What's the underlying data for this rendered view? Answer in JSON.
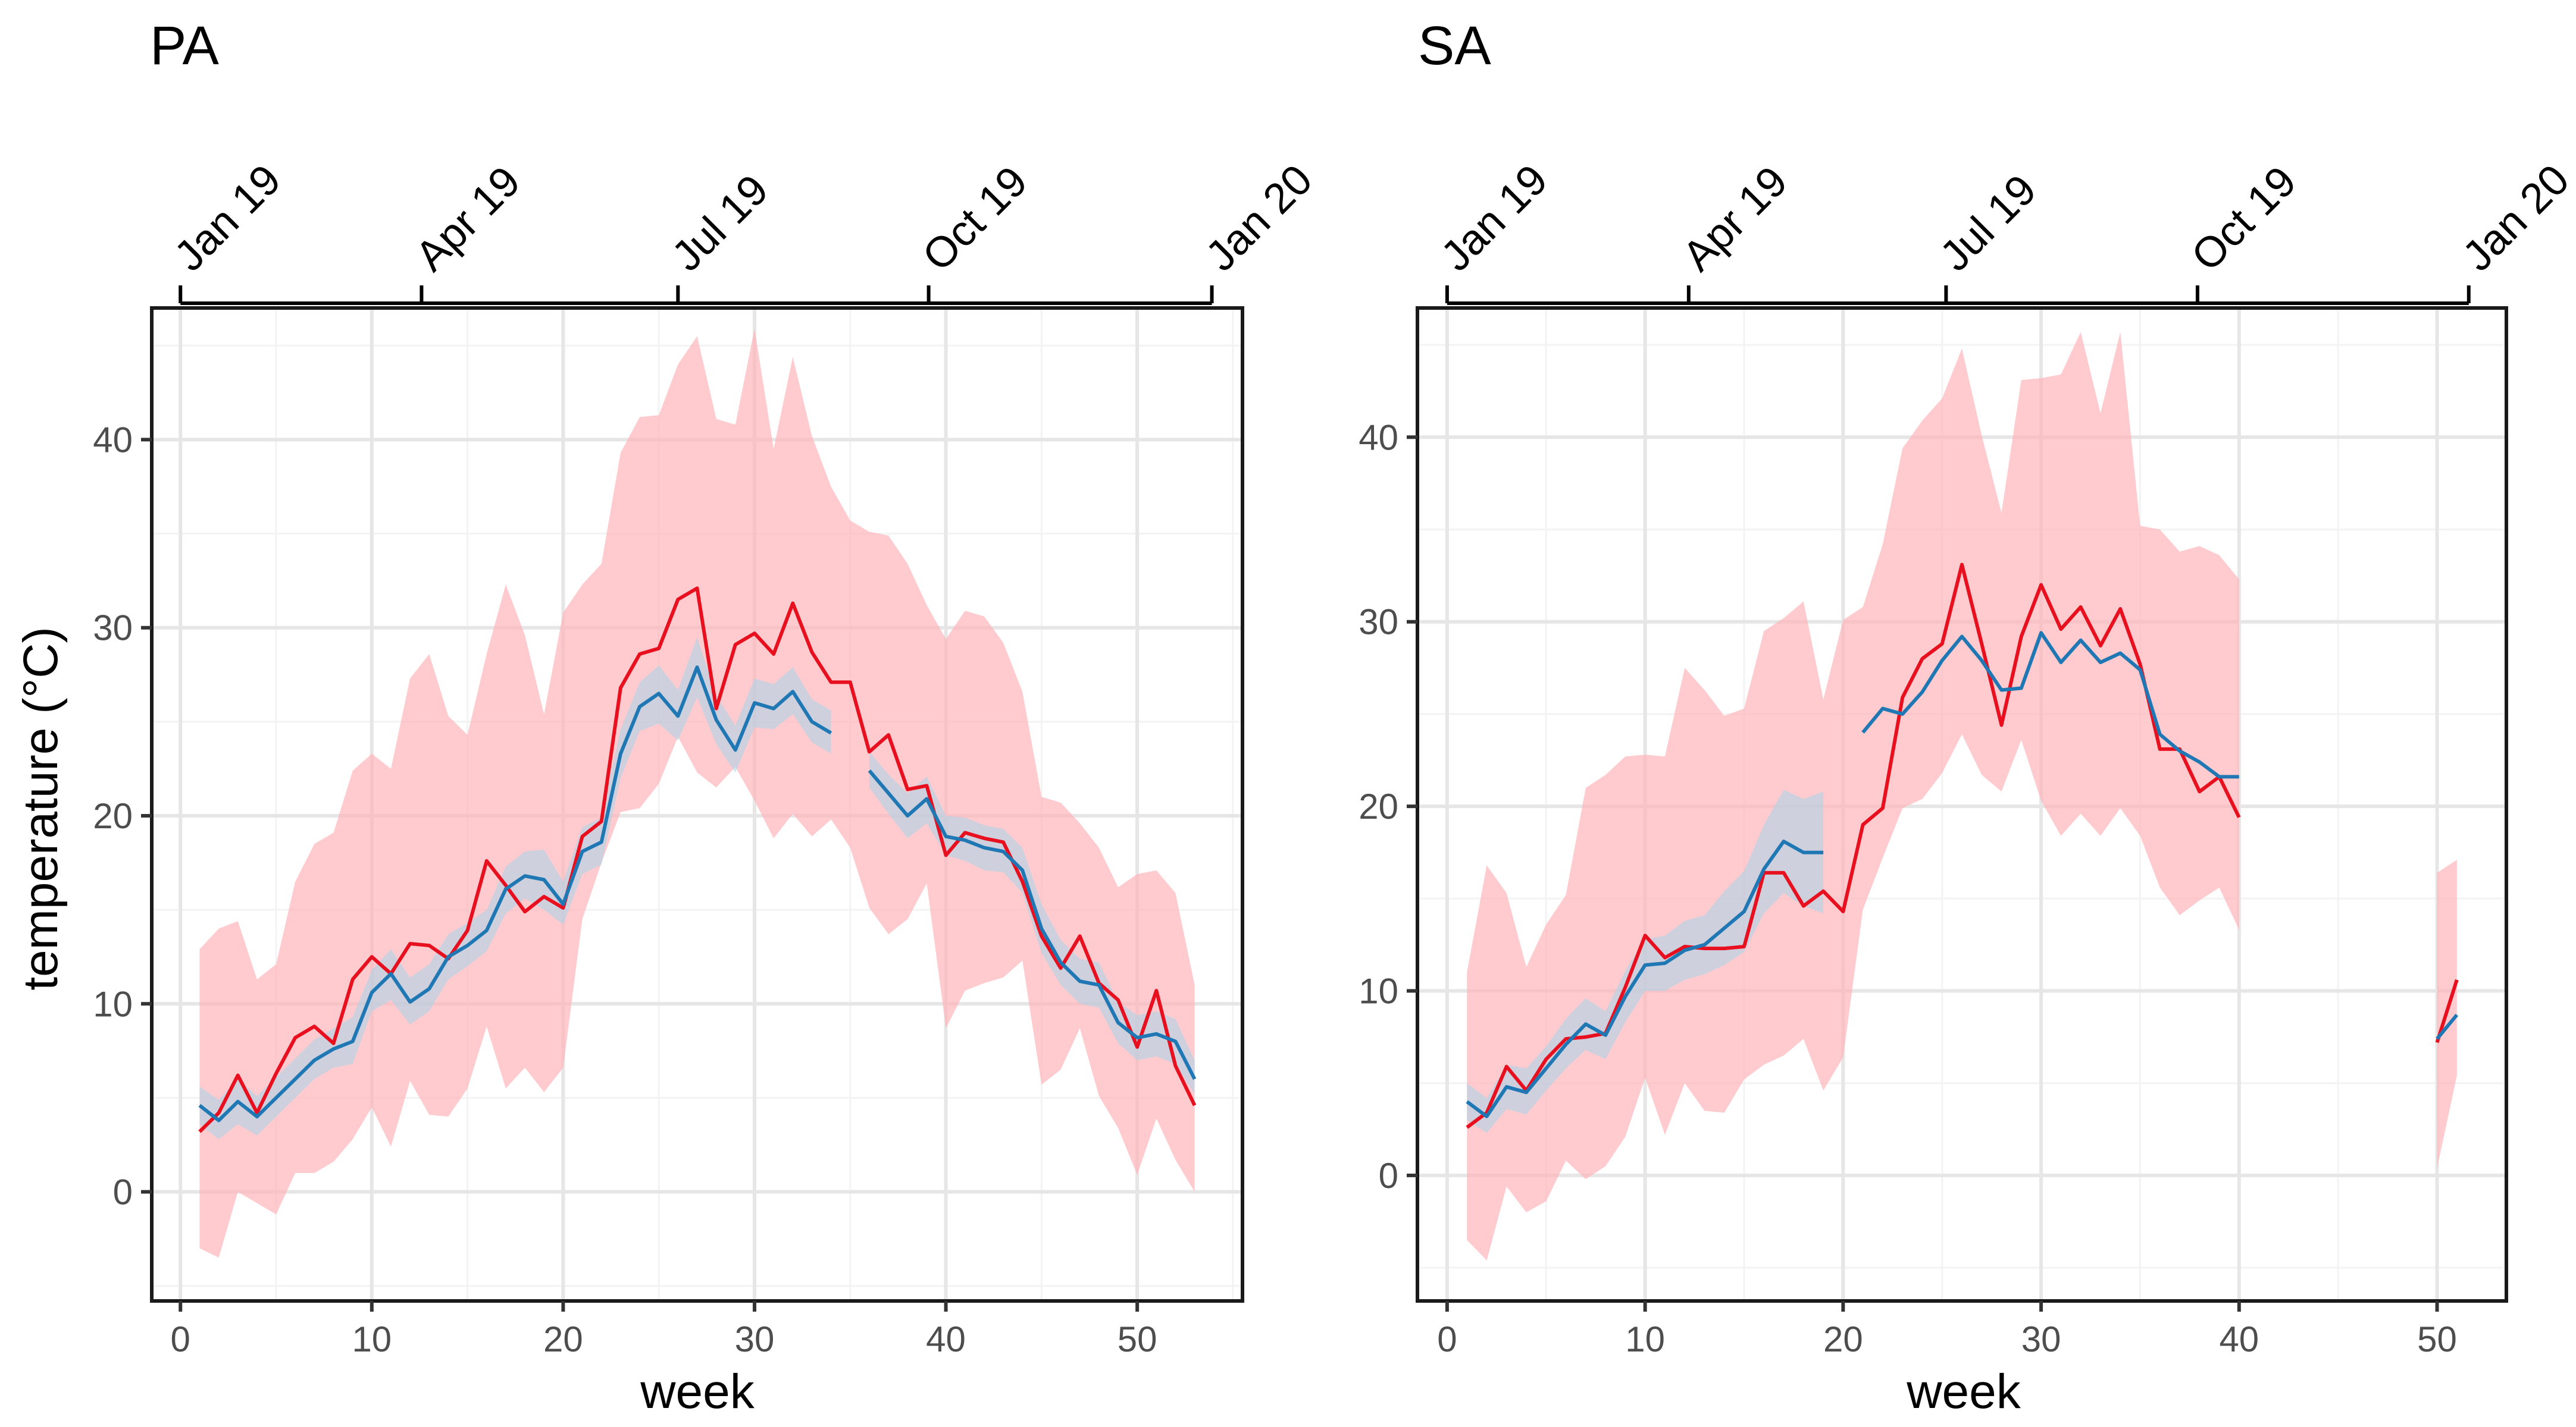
{
  "figure": {
    "ylabel": "temperature (°C)",
    "xlabel": "week"
  },
  "colors": {
    "red_line": "#e8101e",
    "red_band": "#ffb3b8",
    "blue_line": "#1f78b4",
    "blue_band": "#a6d6ea",
    "grid_major": "#e6e6e6",
    "grid_minor": "#f3f3f3"
  },
  "chart_data": [
    {
      "type": "line",
      "title": "PA",
      "xlabel": "week",
      "ylabel": "temperature (°C)",
      "xlim": [
        -1.5,
        55.5
      ],
      "ylim": [
        -5.8,
        47
      ],
      "x_ticks": [
        0,
        10,
        20,
        30,
        40,
        50
      ],
      "y_ticks": [
        0,
        10,
        20,
        30,
        40
      ],
      "top_axis": {
        "labels": [
          "Jan 19",
          "Apr 19",
          "Jul 19",
          "Oct 19",
          "Jan 20"
        ],
        "weeks": [
          0,
          12.6,
          26,
          39.1,
          53.9
        ]
      },
      "series": [
        {
          "name": "red",
          "x": [
            1,
            2,
            3,
            4,
            5,
            6,
            7,
            8,
            9,
            10,
            11,
            12,
            13,
            14,
            15,
            16,
            17,
            18,
            19,
            20,
            21,
            22,
            23,
            24,
            25,
            26,
            27,
            28,
            29,
            30,
            31,
            32,
            33,
            34,
            35,
            36,
            37,
            38,
            39,
            40,
            41,
            42,
            43,
            44,
            45,
            46,
            47,
            48,
            49,
            50,
            51,
            52,
            53
          ],
          "values": [
            3.2,
            4.2,
            6.2,
            4.2,
            6.3,
            8.2,
            8.8,
            7.9,
            11.3,
            12.5,
            11.6,
            13.2,
            13.1,
            12.4,
            13.9,
            17.6,
            16.3,
            14.9,
            15.7,
            15.1,
            18.9,
            19.7,
            26.8,
            28.6,
            28.9,
            31.5,
            32.1,
            25.7,
            29.1,
            29.7,
            28.6,
            31.3,
            28.7,
            27.1,
            27.1,
            23.4,
            24.3,
            21.4,
            21.6,
            17.9,
            19.1,
            18.8,
            18.6,
            16.5,
            13.6,
            11.9,
            13.6,
            11.1,
            10.2,
            7.7,
            10.7,
            6.7,
            4.6
          ],
          "lower": [
            -3.0,
            -3.5,
            0.0,
            -0.6,
            -1.2,
            1.0,
            1.0,
            1.6,
            2.8,
            4.5,
            2.4,
            5.9,
            4.1,
            4.0,
            5.5,
            8.8,
            5.5,
            6.6,
            5.3,
            6.6,
            14.5,
            17.5,
            20.2,
            20.4,
            21.7,
            24.2,
            22.3,
            21.5,
            22.6,
            20.8,
            18.8,
            20.1,
            18.9,
            19.8,
            18.3,
            15.1,
            13.7,
            14.5,
            16.4,
            8.7,
            10.7,
            11.1,
            11.4,
            12.3,
            5.7,
            6.5,
            8.7,
            5.1,
            3.4,
            0.9,
            3.9,
            1.7,
            0.0
          ],
          "upper": [
            12.9,
            14.0,
            14.4,
            11.3,
            12.1,
            16.5,
            18.5,
            19.1,
            22.4,
            23.3,
            22.5,
            27.3,
            28.6,
            25.3,
            24.3,
            28.6,
            32.3,
            29.6,
            25.4,
            30.8,
            32.3,
            33.4,
            39.3,
            41.2,
            41.3,
            44.0,
            45.5,
            41.1,
            40.8,
            45.9,
            39.5,
            44.4,
            40.2,
            37.5,
            35.7,
            35.1,
            34.9,
            33.4,
            31.2,
            29.4,
            30.9,
            30.6,
            29.2,
            26.6,
            21.0,
            20.7,
            19.6,
            18.3,
            16.2,
            16.9,
            17.1,
            15.9,
            11.0
          ]
        },
        {
          "name": "blue",
          "x": [
            1,
            2,
            3,
            4,
            5,
            6,
            7,
            8,
            9,
            10,
            11,
            12,
            13,
            14,
            15,
            16,
            17,
            18,
            19,
            20,
            21,
            22,
            23,
            24,
            25,
            26,
            27,
            28,
            29,
            30,
            31,
            32,
            33,
            34,
            null,
            36,
            37,
            38,
            39,
            40,
            41,
            42,
            43,
            44,
            45,
            46,
            47,
            48,
            49,
            50,
            51,
            52,
            53
          ],
          "values": [
            4.6,
            3.8,
            4.8,
            4.0,
            5.0,
            6.0,
            7.0,
            7.6,
            8.0,
            10.6,
            11.6,
            10.1,
            10.8,
            12.5,
            13.1,
            13.9,
            16.1,
            16.8,
            16.6,
            15.3,
            18.1,
            18.6,
            23.3,
            25.8,
            26.5,
            25.3,
            27.9,
            25.1,
            23.5,
            26.0,
            25.7,
            26.6,
            25.0,
            24.4,
            null,
            22.4,
            21.2,
            20.0,
            20.9,
            18.9,
            18.7,
            18.3,
            18.1,
            17.1,
            14.0,
            12.2,
            11.2,
            11.0,
            9.0,
            8.2,
            8.4,
            8.0,
            6.0
          ],
          "lower": [
            3.6,
            2.8,
            3.6,
            3.0,
            4.0,
            5.0,
            6.0,
            6.6,
            6.8,
            9.6,
            10.2,
            8.9,
            9.6,
            11.3,
            12.0,
            12.8,
            14.8,
            15.6,
            15.0,
            14.2,
            16.9,
            17.4,
            22.0,
            24.5,
            24.9,
            24.0,
            26.3,
            23.8,
            22.3,
            24.7,
            24.6,
            25.4,
            23.9,
            23.3,
            null,
            21.5,
            20.1,
            18.8,
            19.6,
            17.9,
            17.6,
            17.1,
            17.0,
            15.9,
            12.7,
            11.0,
            10.0,
            9.8,
            7.9,
            7.0,
            7.2,
            6.8,
            5.2
          ],
          "upper": [
            5.6,
            4.9,
            6.0,
            5.1,
            6.1,
            7.1,
            8.1,
            8.7,
            9.3,
            11.8,
            12.9,
            11.4,
            12.1,
            13.7,
            14.3,
            15.0,
            17.3,
            18.1,
            18.2,
            16.5,
            19.4,
            19.9,
            24.6,
            27.1,
            28.0,
            26.7,
            29.5,
            26.4,
            24.8,
            27.3,
            27.0,
            27.9,
            26.2,
            25.6,
            null,
            23.4,
            22.2,
            21.2,
            22.1,
            20.0,
            19.9,
            19.5,
            19.3,
            18.3,
            15.3,
            13.4,
            12.4,
            12.2,
            10.1,
            9.4,
            9.6,
            9.2,
            7.0
          ]
        }
      ]
    },
    {
      "type": "line",
      "title": "SA",
      "xlabel": "week",
      "ylabel": "",
      "xlim": [
        -1.5,
        53.5
      ],
      "ylim": [
        -6.8,
        47
      ],
      "x_ticks": [
        0,
        10,
        20,
        30,
        40,
        50
      ],
      "y_ticks": [
        0,
        10,
        20,
        30,
        40
      ],
      "top_axis": {
        "labels": [
          "Jan 19",
          "Apr 19",
          "Jul 19",
          "Oct 19",
          "Jan 20"
        ],
        "weeks": [
          0,
          12.2,
          25.2,
          37.9,
          51.6
        ]
      },
      "series": [
        {
          "name": "red",
          "x": [
            1,
            2,
            3,
            4,
            5,
            6,
            7,
            8,
            9,
            10,
            11,
            12,
            13,
            14,
            15,
            16,
            17,
            18,
            19,
            20,
            21,
            22,
            23,
            24,
            25,
            26,
            27,
            28,
            29,
            30,
            31,
            32,
            33,
            34,
            35,
            36,
            37,
            38,
            39,
            40,
            null,
            null,
            null,
            null,
            null,
            null,
            null,
            null,
            null,
            50,
            51
          ],
          "values": [
            2.6,
            3.4,
            5.9,
            4.6,
            6.3,
            7.4,
            7.5,
            7.7,
            10.2,
            13.0,
            11.8,
            12.4,
            12.3,
            12.3,
            12.4,
            16.4,
            16.4,
            14.6,
            15.4,
            14.3,
            19.0,
            19.9,
            25.9,
            28.0,
            28.8,
            33.1,
            28.8,
            24.4,
            29.2,
            32.0,
            29.6,
            30.8,
            28.7,
            30.7,
            27.7,
            23.1,
            23.1,
            20.8,
            21.6,
            19.4,
            null,
            null,
            null,
            null,
            null,
            null,
            null,
            null,
            null,
            7.2,
            10.6
          ],
          "lower": [
            -3.5,
            -4.6,
            -0.6,
            -2.0,
            -1.4,
            0.8,
            -0.2,
            0.5,
            2.1,
            5.3,
            2.2,
            5.0,
            3.5,
            3.4,
            5.2,
            6.0,
            6.5,
            7.4,
            4.6,
            6.4,
            14.4,
            17.2,
            19.9,
            20.4,
            21.8,
            23.9,
            21.7,
            20.8,
            23.6,
            20.3,
            18.4,
            19.6,
            18.4,
            19.9,
            18.4,
            15.6,
            14.1,
            14.9,
            15.6,
            13.3,
            null,
            null,
            null,
            null,
            null,
            null,
            null,
            null,
            null,
            0.4,
            5.4
          ],
          "upper": [
            11.0,
            16.8,
            15.3,
            11.3,
            13.6,
            15.2,
            21.0,
            21.7,
            22.7,
            22.8,
            22.7,
            27.5,
            26.3,
            24.9,
            25.3,
            29.5,
            30.2,
            31.1,
            25.8,
            30.1,
            30.8,
            34.2,
            39.4,
            40.9,
            42.1,
            44.8,
            40.1,
            35.9,
            43.1,
            43.2,
            43.4,
            45.7,
            41.3,
            45.7,
            35.2,
            35.0,
            33.8,
            34.1,
            33.6,
            32.3,
            null,
            null,
            null,
            null,
            null,
            null,
            null,
            null,
            null,
            16.4,
            17.1
          ]
        },
        {
          "name": "blue",
          "x": [
            1,
            2,
            3,
            4,
            5,
            6,
            7,
            8,
            9,
            10,
            11,
            12,
            13,
            14,
            15,
            16,
            17,
            18,
            19,
            20,
            21,
            22,
            23,
            24,
            25,
            26,
            27,
            28,
            29,
            30,
            31,
            32,
            33,
            34,
            35,
            36,
            37,
            38,
            39,
            40,
            null,
            null,
            null,
            null,
            null,
            null,
            null,
            null,
            null,
            50,
            51
          ],
          "values": [
            4.0,
            3.2,
            4.8,
            4.5,
            5.8,
            7.1,
            8.2,
            7.6,
            9.7,
            11.4,
            11.5,
            12.2,
            12.5,
            13.4,
            14.3,
            16.6,
            18.1,
            17.5,
            17.5,
            null,
            24.0,
            25.3,
            25.0,
            26.2,
            27.9,
            29.2,
            27.9,
            26.3,
            26.4,
            29.4,
            27.8,
            29.0,
            27.8,
            28.3,
            27.4,
            23.9,
            23.0,
            22.4,
            21.6,
            21.6,
            null,
            null,
            null,
            null,
            null,
            null,
            null,
            null,
            null,
            7.4,
            8.7
          ],
          "lower": [
            3.0,
            2.3,
            3.6,
            3.3,
            4.6,
            5.8,
            6.8,
            6.3,
            8.3,
            10.0,
            10.0,
            10.6,
            10.9,
            11.4,
            12.1,
            14.2,
            15.3,
            14.6,
            14.2,
            null,
            null,
            null,
            null,
            null,
            null,
            null,
            null,
            null,
            null,
            null,
            null,
            null,
            null,
            null,
            null,
            null,
            null,
            null,
            null,
            null,
            null,
            null,
            null,
            null,
            null,
            null,
            null,
            null,
            null,
            null,
            null
          ],
          "upper": [
            5.0,
            4.2,
            6.0,
            5.8,
            7.0,
            8.5,
            9.6,
            8.9,
            11.1,
            12.8,
            13.0,
            13.8,
            14.1,
            15.4,
            16.5,
            19.0,
            20.9,
            20.4,
            20.8,
            null,
            null,
            null,
            null,
            null,
            null,
            null,
            null,
            null,
            null,
            null,
            null,
            null,
            null,
            null,
            null,
            null,
            null,
            null,
            null,
            null,
            null,
            null,
            null,
            null,
            null,
            null,
            null,
            null,
            null,
            null,
            null
          ]
        }
      ]
    }
  ]
}
